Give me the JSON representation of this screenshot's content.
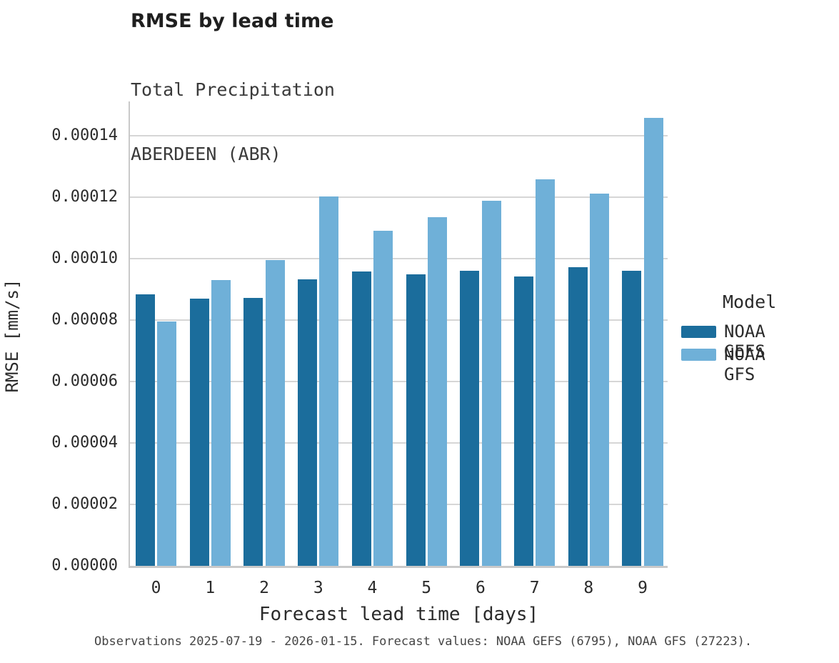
{
  "header": {
    "title": "RMSE by lead time",
    "subtitle_line1": "Total Precipitation",
    "subtitle_line2": "ABERDEEN (ABR)"
  },
  "chart_data": {
    "type": "bar",
    "title": "RMSE by lead time",
    "subtitle": [
      "Total Precipitation",
      "ABERDEEN (ABR)"
    ],
    "xlabel": "Forecast lead time [days]",
    "ylabel": "RMSE [mm/s]",
    "categories": [
      "0",
      "1",
      "2",
      "3",
      "4",
      "5",
      "6",
      "7",
      "8",
      "9"
    ],
    "series": [
      {
        "name": "NOAA GEFS",
        "color": "#1b6d9c",
        "values": [
          8.84e-05,
          8.7e-05,
          8.72e-05,
          9.33e-05,
          9.58e-05,
          9.49e-05,
          9.61e-05,
          9.43e-05,
          9.73e-05,
          9.61e-05
        ]
      },
      {
        "name": "NOAA GFS",
        "color": "#6fb0d8",
        "values": [
          7.96e-05,
          9.3e-05,
          9.95e-05,
          0.0001203,
          0.0001091,
          0.0001134,
          0.0001189,
          0.0001257,
          0.0001211,
          0.0001459
        ]
      }
    ],
    "ylim": [
      0,
      0.000151
    ],
    "ytick_step": 2e-05,
    "ytick_labels": [
      "0.00000",
      "0.00002",
      "0.00004",
      "0.00006",
      "0.00008",
      "0.00010",
      "0.00012",
      "0.00014"
    ],
    "grid": "horizontal",
    "legend_title": "Model",
    "legend_position": "right"
  },
  "legend": {
    "title": "Model",
    "items": [
      {
        "label": "NOAA GEFS",
        "color": "#1b6d9c"
      },
      {
        "label": "NOAA GFS",
        "color": "#6fb0d8"
      }
    ]
  },
  "caption": {
    "text": "Observations 2025-07-19 - 2026-01-15. Forecast values: NOAA GEFS (6795), NOAA GFS (27223)."
  },
  "colors": {
    "gefs_bar": "#1b6d9c",
    "gfs_bar": "#6fb0d8",
    "gridline": "#d6d6d6",
    "spine": "#c9c9c9",
    "title_text": "#1f1f1f",
    "tick_text": "#2b2b2b",
    "caption_text": "#454545",
    "background": "#ffffff"
  }
}
